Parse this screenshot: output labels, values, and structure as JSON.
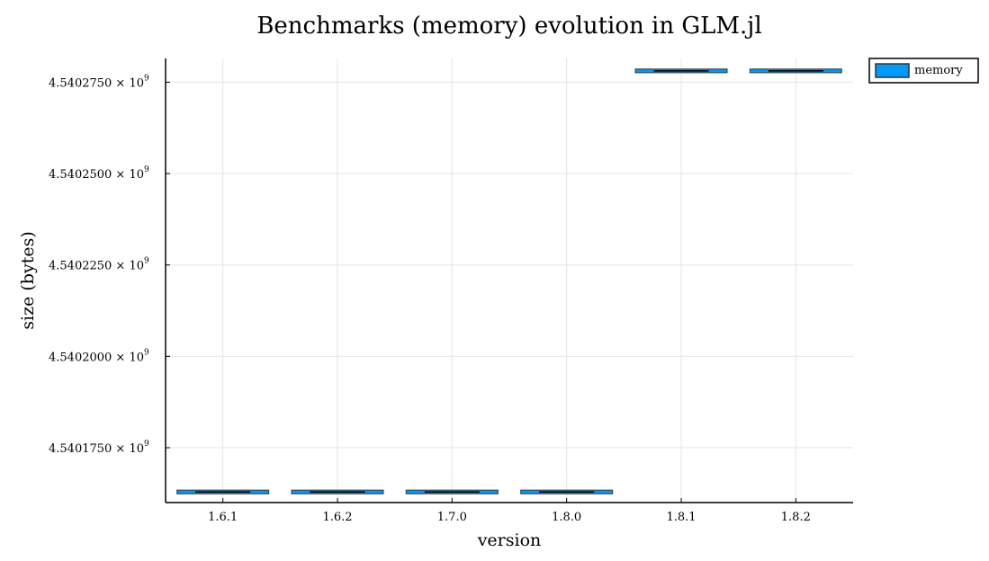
{
  "chart_data": {
    "type": "box",
    "title": "Benchmarks (memory) evolution in GLM.jl",
    "xlabel": "version",
    "ylabel": "size (bytes)",
    "categories": [
      "1.6.1",
      "1.6.2",
      "1.7.0",
      "1.8.0",
      "1.8.1",
      "1.8.2"
    ],
    "series": [
      {
        "name": "memory",
        "color": "#009af9",
        "values": [
          4540162900,
          4540162900,
          4540162900,
          4540162900,
          4540278100,
          4540278100
        ]
      }
    ],
    "yticks": [
      4540175000,
      4540200000,
      4540225000,
      4540250000,
      4540275000
    ],
    "ytick_labels": [
      "4.5401750",
      "4.5402000",
      "4.5402250",
      "4.5402500",
      "4.5402750"
    ],
    "ytick_suffix": " × 10",
    "ytick_exponent": "9",
    "ylim": [
      4540160000,
      4540281500
    ],
    "grid": true,
    "legend": "outside-top-right"
  }
}
